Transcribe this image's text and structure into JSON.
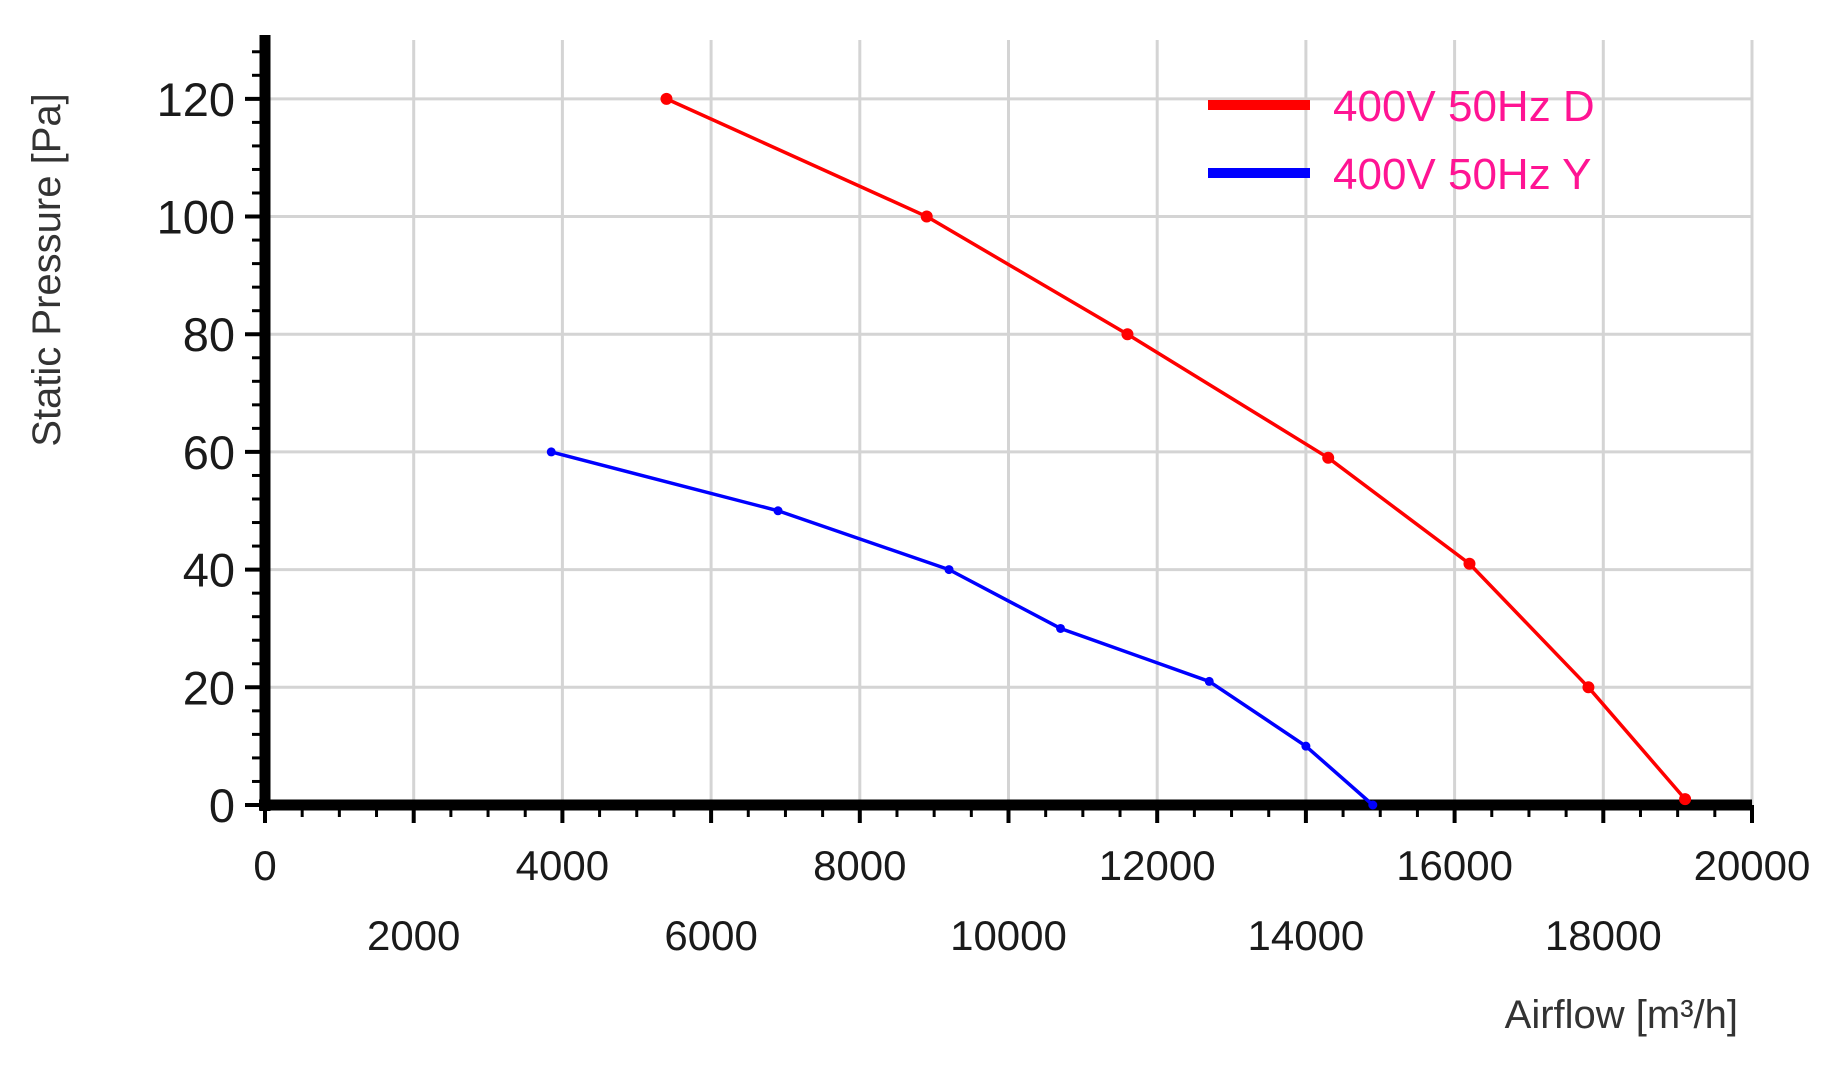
{
  "chart_data": {
    "type": "line",
    "title": "",
    "xlabel": "Airflow [m³/h]",
    "ylabel": "Static Pressure [Pa]",
    "xlim": [
      0,
      20000
    ],
    "ylim": [
      0,
      130
    ],
    "x_ticks": [
      0,
      2000,
      4000,
      6000,
      8000,
      10000,
      12000,
      14000,
      16000,
      18000,
      20000
    ],
    "x_tick_labels": [
      "0",
      "2000",
      "4000",
      "6000",
      "8000",
      "10000",
      "12000",
      "14000",
      "16000",
      "18000",
      "20000"
    ],
    "y_ticks": [
      0,
      20,
      40,
      60,
      80,
      100,
      120
    ],
    "y_tick_labels": [
      "0",
      "20",
      "40",
      "60",
      "80",
      "100",
      "120"
    ],
    "grid": true,
    "legend_position": "top-right",
    "series": [
      {
        "name": "400V 50Hz D",
        "color": "#ff0000",
        "x": [
          5400,
          8900,
          11600,
          14300,
          16200,
          17800,
          19100
        ],
        "y": [
          120,
          100,
          80,
          59,
          41,
          20,
          1
        ]
      },
      {
        "name": "400V 50Hz Y",
        "color": "#0000ff",
        "x": [
          3850,
          6900,
          9200,
          10700,
          12700,
          14000,
          14900
        ],
        "y": [
          60,
          50,
          40,
          30,
          21,
          10,
          0
        ]
      }
    ],
    "legend_text_color": "#ff1493"
  }
}
